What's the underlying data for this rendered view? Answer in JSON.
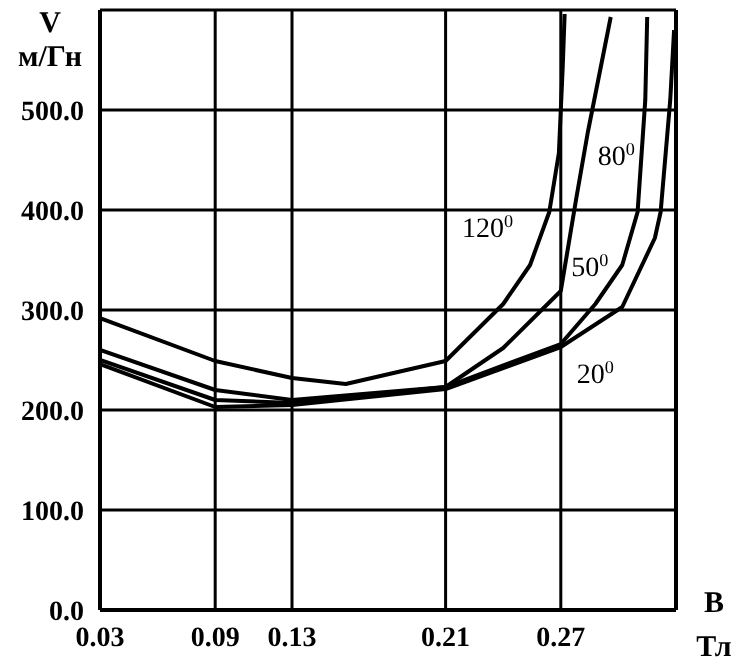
{
  "chart_data": {
    "type": "line",
    "xlabel": "B\nТл",
    "ylabel": "V\nм/Гн",
    "xlim": [
      0.03,
      0.33
    ],
    "ylim": [
      0,
      600
    ],
    "xticks": [
      0.03,
      0.09,
      0.13,
      0.21,
      0.27
    ],
    "yticks": [
      {
        "value": 0,
        "label": "0.0"
      },
      {
        "value": 100,
        "label": "100.0"
      },
      {
        "value": 200,
        "label": "200.0"
      },
      {
        "value": 300,
        "label": "300.0"
      },
      {
        "value": 400,
        "label": "400.0"
      },
      {
        "value": 500,
        "label": "500.0"
      },
      {
        "value": 600,
        "label": null
      }
    ],
    "grid": true,
    "legend": false,
    "marker": "none",
    "line_style": "solid",
    "series": [
      {
        "name": "120$^{0}$",
        "color": "#000000",
        "x": [
          0.03,
          0.09,
          0.13,
          0.158,
          0.21,
          0.24,
          0.254,
          0.264,
          0.269,
          0.271,
          0.272
        ],
        "values": [
          292,
          249,
          232,
          226,
          249,
          306,
          345,
          398,
          457,
          543,
          596
        ]
      },
      {
        "name": "80$^{0}$",
        "color": "#000000",
        "x": [
          0.03,
          0.09,
          0.13,
          0.21,
          0.24,
          0.27,
          0.278,
          0.284,
          0.296
        ],
        "values": [
          260,
          220,
          210,
          223,
          262,
          319,
          411,
          477,
          593
        ]
      },
      {
        "name": "50$^{0}$",
        "color": "#000000",
        "x": [
          0.03,
          0.09,
          0.13,
          0.21,
          0.27,
          0.288,
          0.302,
          0.31,
          0.314,
          0.315
        ],
        "values": [
          250,
          210,
          207,
          223,
          266,
          306,
          345,
          398,
          510,
          593
        ]
      },
      {
        "name": "20$^{0}$",
        "color": "#000000",
        "x": [
          0.03,
          0.09,
          0.13,
          0.21,
          0.27,
          0.302,
          0.319,
          0.322,
          0.327,
          0.329
        ],
        "values": [
          246,
          203,
          205,
          221,
          263,
          303,
          372,
          398,
          510,
          580
        ]
      }
    ]
  }
}
